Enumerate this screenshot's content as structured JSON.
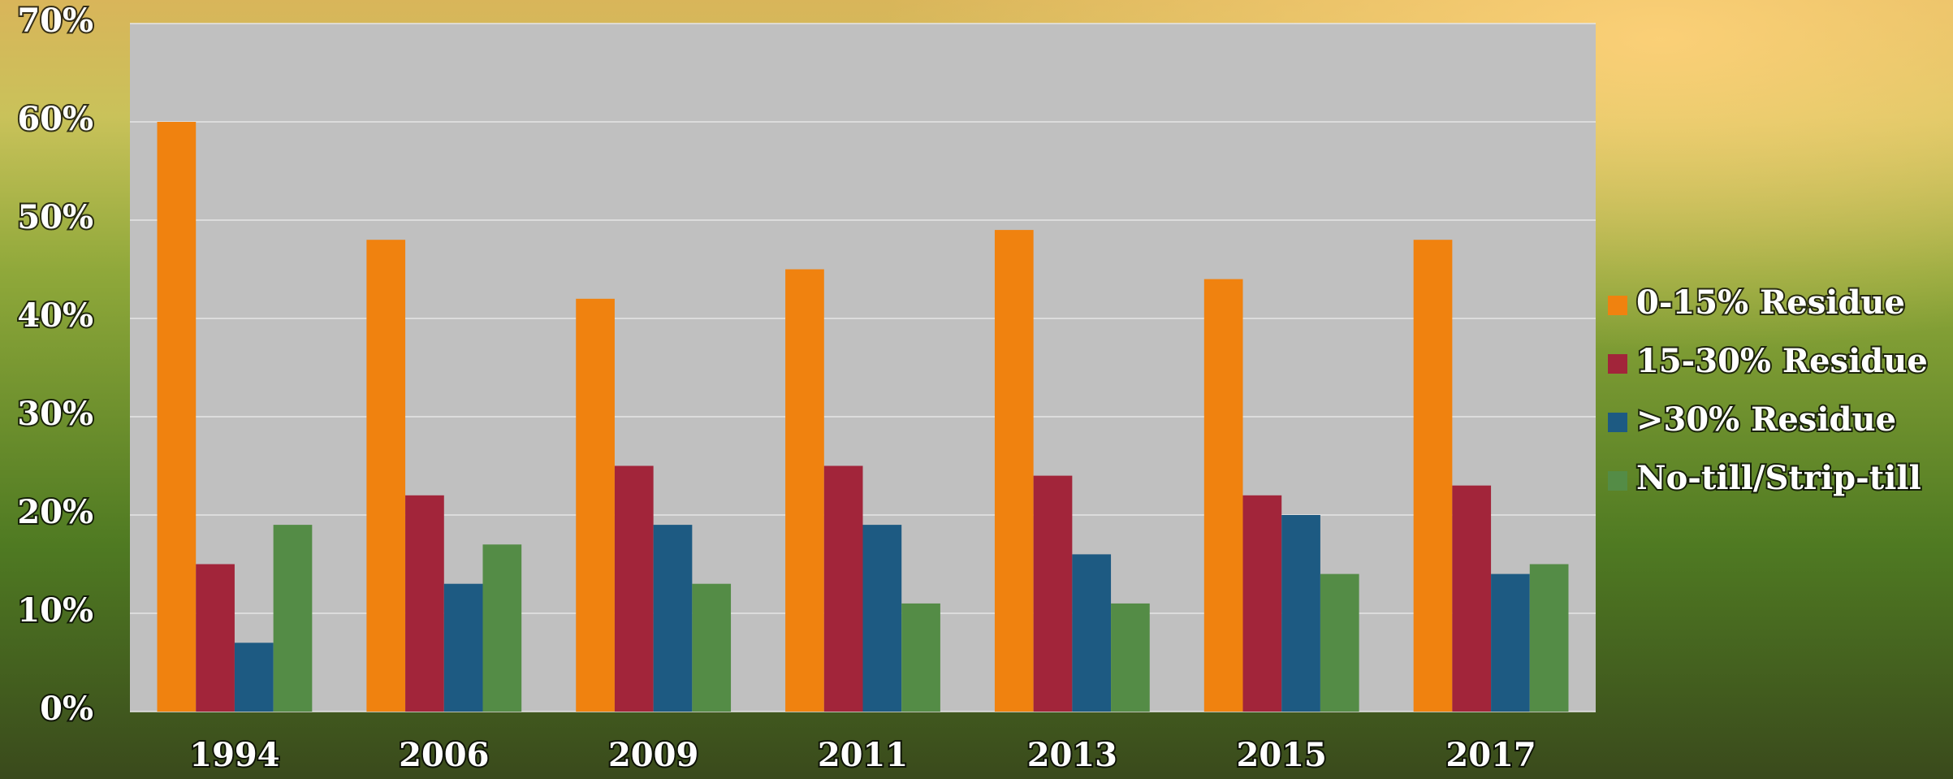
{
  "chart_data": {
    "type": "bar",
    "categories": [
      "1994",
      "2006",
      "2009",
      "2011",
      "2013",
      "2015",
      "2017"
    ],
    "series": [
      {
        "name": "0-15% Residue",
        "color": "#f0820f",
        "values": [
          60,
          48,
          42,
          45,
          49,
          44,
          48
        ]
      },
      {
        "name": "15-30% Residue",
        "color": "#a2253a",
        "values": [
          15,
          22,
          25,
          25,
          24,
          22,
          23
        ]
      },
      {
        "name": ">30% Residue",
        "color": "#1d5a82",
        "values": [
          7,
          13,
          19,
          19,
          16,
          20,
          14
        ]
      },
      {
        "name": "No-till/Strip-till",
        "color": "#548c46",
        "values": [
          19,
          17,
          13,
          11,
          11,
          14,
          15
        ]
      }
    ],
    "ylim": [
      0,
      70
    ],
    "yticks": [
      {
        "value": 0,
        "label": "0%"
      },
      {
        "value": 10,
        "label": "10%"
      },
      {
        "value": 20,
        "label": "20%"
      },
      {
        "value": 30,
        "label": "30%"
      },
      {
        "value": 40,
        "label": "40%"
      },
      {
        "value": 50,
        "label": "50%"
      },
      {
        "value": 60,
        "label": "60%"
      },
      {
        "value": 70,
        "label": "70%"
      }
    ],
    "grid": true,
    "legend": "right"
  }
}
